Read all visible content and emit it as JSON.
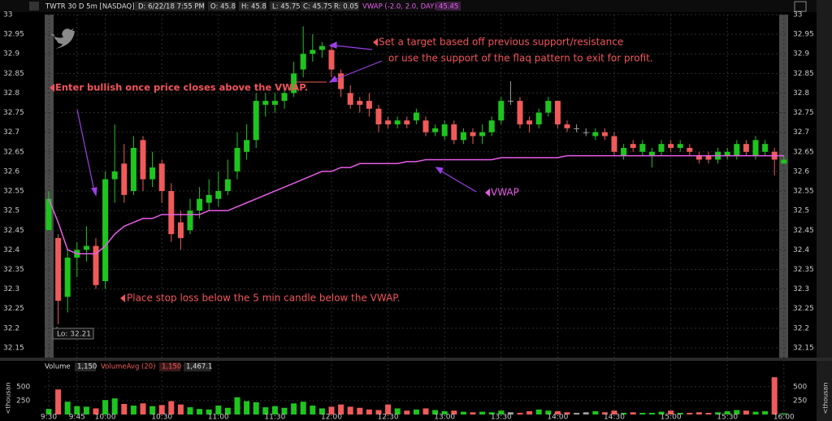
{
  "header": {
    "symbol": "TWTR 30 D 5m [NASDAQ]",
    "date": "D: 6/22/18 7:55 PM",
    "open": "O: 45.8",
    "high": "H: 45.8",
    "low": "L: 45.75",
    "close": "C: 45.75",
    "range": "R: 0.05",
    "study": "VWAP (-2.0, 2.0, DAY)",
    "study_value": "45.45"
  },
  "chart_data": [
    {
      "type": "candlestick",
      "categories": [
        "9:30",
        null,
        null,
        "9:45",
        null,
        null,
        "10:00",
        null,
        null,
        null,
        null,
        null,
        "10:30",
        null,
        null,
        null,
        null,
        null,
        "11:00",
        null,
        null,
        null,
        null,
        null,
        "11:30",
        null,
        null,
        null,
        null,
        null,
        "12:00",
        null,
        null,
        null,
        null,
        null,
        "12:30",
        null,
        null,
        null,
        null,
        null,
        "13:00",
        null,
        null,
        null,
        null,
        null,
        "13:30",
        null,
        null,
        null,
        null,
        null,
        "14:00",
        null,
        null,
        null,
        null,
        null,
        "14:30",
        null,
        null,
        null,
        null,
        null,
        "15:00",
        null,
        null,
        null,
        null,
        null,
        "15:30",
        null,
        null,
        null,
        null,
        null,
        "16:00"
      ],
      "open": [
        32.45,
        32.43,
        32.28,
        32.38,
        32.4,
        32.41,
        32.32,
        32.58,
        32.62,
        32.55,
        32.68,
        32.58,
        32.62,
        32.55,
        32.47,
        32.45,
        32.5,
        32.52,
        32.53,
        32.55,
        32.6,
        32.65,
        32.68,
        32.77,
        32.77,
        32.78,
        32.8,
        32.86,
        32.9,
        32.91,
        32.91,
        32.85,
        32.8,
        32.78,
        32.78,
        32.76,
        32.73,
        32.72,
        32.73,
        32.73,
        32.73,
        32.7,
        32.69,
        32.72,
        32.68,
        32.7,
        32.69,
        32.7,
        32.73,
        32.78,
        32.78,
        32.73,
        32.72,
        32.75,
        32.78,
        32.72,
        32.71,
        32.7,
        32.69,
        32.7,
        32.69,
        32.64,
        32.67,
        32.65,
        32.64,
        32.65,
        32.67,
        32.66,
        32.66,
        32.64,
        32.64,
        32.63,
        32.64,
        32.64,
        32.67,
        32.64,
        32.65,
        32.65,
        32.62
      ],
      "high": [
        32.55,
        32.44,
        32.4,
        32.42,
        32.46,
        32.43,
        32.6,
        32.72,
        32.67,
        32.69,
        32.69,
        32.65,
        32.63,
        32.57,
        32.5,
        32.53,
        32.56,
        32.58,
        32.6,
        32.63,
        32.7,
        32.72,
        32.8,
        32.8,
        32.8,
        32.82,
        32.88,
        32.97,
        32.95,
        32.93,
        32.92,
        32.86,
        32.82,
        32.79,
        32.8,
        32.77,
        32.74,
        32.74,
        32.74,
        32.76,
        32.74,
        32.72,
        32.73,
        32.73,
        32.71,
        32.71,
        32.72,
        32.74,
        32.79,
        32.83,
        32.79,
        32.74,
        32.76,
        32.79,
        32.78,
        32.73,
        32.72,
        32.71,
        32.71,
        32.71,
        32.7,
        32.67,
        32.68,
        32.68,
        32.66,
        32.68,
        32.68,
        32.68,
        32.67,
        32.65,
        32.65,
        32.66,
        32.66,
        32.68,
        32.68,
        32.69,
        32.68,
        32.66,
        32.64
      ],
      "low": [
        32.45,
        32.21,
        32.24,
        32.33,
        32.37,
        32.3,
        32.3,
        32.52,
        32.52,
        32.54,
        32.55,
        32.56,
        32.52,
        32.42,
        32.4,
        32.44,
        32.48,
        32.5,
        32.51,
        32.54,
        32.58,
        32.63,
        32.66,
        32.74,
        32.75,
        32.76,
        32.79,
        32.84,
        32.88,
        32.89,
        32.84,
        32.79,
        32.76,
        32.75,
        32.74,
        32.7,
        32.71,
        32.71,
        32.71,
        32.72,
        32.69,
        32.69,
        32.68,
        32.67,
        32.67,
        32.67,
        32.67,
        32.69,
        32.72,
        32.77,
        32.71,
        32.7,
        32.71,
        32.74,
        32.71,
        32.7,
        32.7,
        32.69,
        32.68,
        32.68,
        32.64,
        32.63,
        32.65,
        32.64,
        32.61,
        32.64,
        32.65,
        32.65,
        32.64,
        32.62,
        32.62,
        32.62,
        32.63,
        32.63,
        32.64,
        32.63,
        32.64,
        32.59,
        32.62
      ],
      "close": [
        32.53,
        32.27,
        32.38,
        32.4,
        32.41,
        32.31,
        32.58,
        32.6,
        32.54,
        32.66,
        32.58,
        32.61,
        32.55,
        32.44,
        32.43,
        32.5,
        32.53,
        32.54,
        32.55,
        32.58,
        32.66,
        32.68,
        32.78,
        32.78,
        32.78,
        32.8,
        32.85,
        32.9,
        32.91,
        32.92,
        32.86,
        32.81,
        32.77,
        32.77,
        32.76,
        32.72,
        32.72,
        32.73,
        32.72,
        32.75,
        32.7,
        32.71,
        32.72,
        32.68,
        32.7,
        32.69,
        32.7,
        32.73,
        32.78,
        32.78,
        32.72,
        32.72,
        32.75,
        32.78,
        32.72,
        32.71,
        32.71,
        32.7,
        32.7,
        32.69,
        32.65,
        32.66,
        32.66,
        32.67,
        32.65,
        32.67,
        32.66,
        32.67,
        32.65,
        32.63,
        32.63,
        32.65,
        32.65,
        32.67,
        32.65,
        32.68,
        32.67,
        32.63,
        32.63
      ],
      "vwap": {
        "name": "VWAP",
        "color": "#e75ce8",
        "values": [
          32.53,
          32.47,
          32.4,
          32.39,
          32.39,
          32.39,
          32.41,
          32.44,
          32.46,
          32.47,
          32.48,
          32.48,
          32.49,
          32.49,
          32.49,
          32.49,
          32.49,
          32.5,
          32.5,
          32.5,
          32.51,
          32.52,
          32.53,
          32.54,
          32.55,
          32.56,
          32.57,
          32.58,
          32.59,
          32.6,
          32.6,
          32.61,
          32.61,
          32.62,
          32.62,
          32.62,
          32.62,
          32.62,
          32.625,
          32.625,
          32.63,
          32.63,
          32.63,
          32.63,
          32.63,
          32.63,
          32.63,
          32.63,
          32.635,
          32.635,
          32.635,
          32.635,
          32.635,
          32.635,
          32.635,
          32.64,
          32.64,
          32.64,
          32.64,
          32.64,
          32.64,
          32.64,
          32.64,
          32.64,
          32.64,
          32.64,
          32.64,
          32.64,
          32.64,
          32.64,
          32.64,
          32.64,
          32.64,
          32.64,
          32.64,
          32.64,
          32.64,
          32.64,
          32.64
        ]
      },
      "up_color": "#1ec51e",
      "down_color": "#f05a5a",
      "flat_color": "#a0a0a0",
      "ylim": [
        32.125,
        33
      ],
      "yticks": [
        32.15,
        32.2,
        32.25,
        32.3,
        32.35,
        32.4,
        32.45,
        32.5,
        32.55,
        32.6,
        32.65,
        32.7,
        32.75,
        32.8,
        32.85,
        32.9,
        32.95,
        33
      ],
      "grid": true,
      "annotations": [
        "Enter bullish once price closes above the VWAP.",
        "Set a target based off previous support/resistance",
        "or use the support of the flaq pattern to exit for profit.",
        "Place stop loss below the 5 min candle below the VWAP.",
        "VWAP",
        "Lo: 32.21"
      ]
    },
    {
      "type": "bar",
      "title": "Volume",
      "value_text": "1,150",
      "study": "VolumeAvg (20)",
      "study_value": "1,150",
      "study_value2": "1,467.1",
      "ylabel": "<thousan",
      "values": [
        100,
        450,
        230,
        150,
        140,
        110,
        260,
        290,
        190,
        160,
        200,
        150,
        170,
        240,
        180,
        130,
        100,
        90,
        160,
        120,
        310,
        240,
        220,
        130,
        150,
        120,
        200,
        230,
        160,
        110,
        140,
        180,
        140,
        120,
        90,
        80,
        180,
        110,
        70,
        90,
        110,
        80,
        60,
        70,
        50,
        40,
        50,
        40,
        70,
        40,
        30,
        60,
        90,
        70,
        60,
        40,
        30,
        40,
        60,
        40,
        70,
        30,
        40,
        30,
        30,
        50,
        70,
        30,
        30,
        40,
        30,
        40,
        60,
        80,
        70,
        50,
        60,
        670,
        20
      ],
      "ylim": [
        0,
        760
      ],
      "yticks": [
        250,
        500
      ],
      "grid": true
    }
  ]
}
